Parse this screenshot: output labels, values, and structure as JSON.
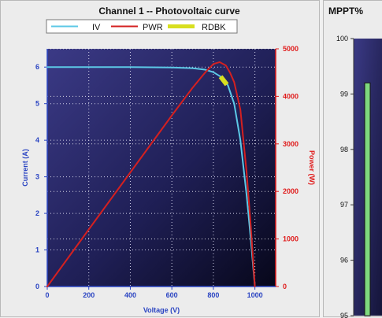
{
  "chart_data": [
    {
      "type": "line",
      "title": "Channel 1 -- Photovoltaic curve",
      "xlabel": "Voltage (V)",
      "ylabel": "Current (A)",
      "y2label": "Power (W)",
      "xlim": [
        0,
        1100
      ],
      "ylim": [
        0,
        6.5
      ],
      "y2lim": [
        0,
        5000
      ],
      "xticks": [
        0,
        200,
        400,
        600,
        800,
        1000
      ],
      "yticks": [
        0,
        1,
        2,
        3,
        4,
        5,
        6
      ],
      "y2ticks": [
        0,
        1000,
        2000,
        3000,
        4000,
        5000
      ],
      "grid": true,
      "legend": "top",
      "series": [
        {
          "name": "IV",
          "axis": "left",
          "color": "#5cc8e6",
          "x": [
            0,
            200,
            400,
            600,
            700,
            760,
            800,
            840,
            870,
            900,
            930,
            960,
            980,
            1000
          ],
          "y": [
            6.0,
            6.0,
            6.0,
            5.99,
            5.97,
            5.93,
            5.86,
            5.72,
            5.5,
            5.0,
            4.0,
            2.5,
            1.3,
            0
          ]
        },
        {
          "name": "PWR",
          "axis": "right",
          "color": "#d42020",
          "x": [
            0,
            200,
            400,
            600,
            700,
            760,
            800,
            830,
            860,
            880,
            900,
            930,
            960,
            980,
            1000
          ],
          "y": [
            0,
            1200,
            2400,
            3600,
            4180,
            4500,
            4680,
            4720,
            4650,
            4500,
            4300,
            3720,
            2400,
            1270,
            0
          ]
        },
        {
          "name": "RDBK",
          "axis": "left",
          "color": "#d8df20",
          "x": [
            835,
            865
          ],
          "y": [
            5.74,
            5.52
          ]
        }
      ]
    },
    {
      "type": "bar",
      "title": "MPPT%",
      "ylim": [
        95,
        100
      ],
      "yticks": [
        95,
        96,
        97,
        98,
        99,
        100
      ],
      "values": [
        99.2
      ],
      "color": "#7ed87e"
    }
  ]
}
